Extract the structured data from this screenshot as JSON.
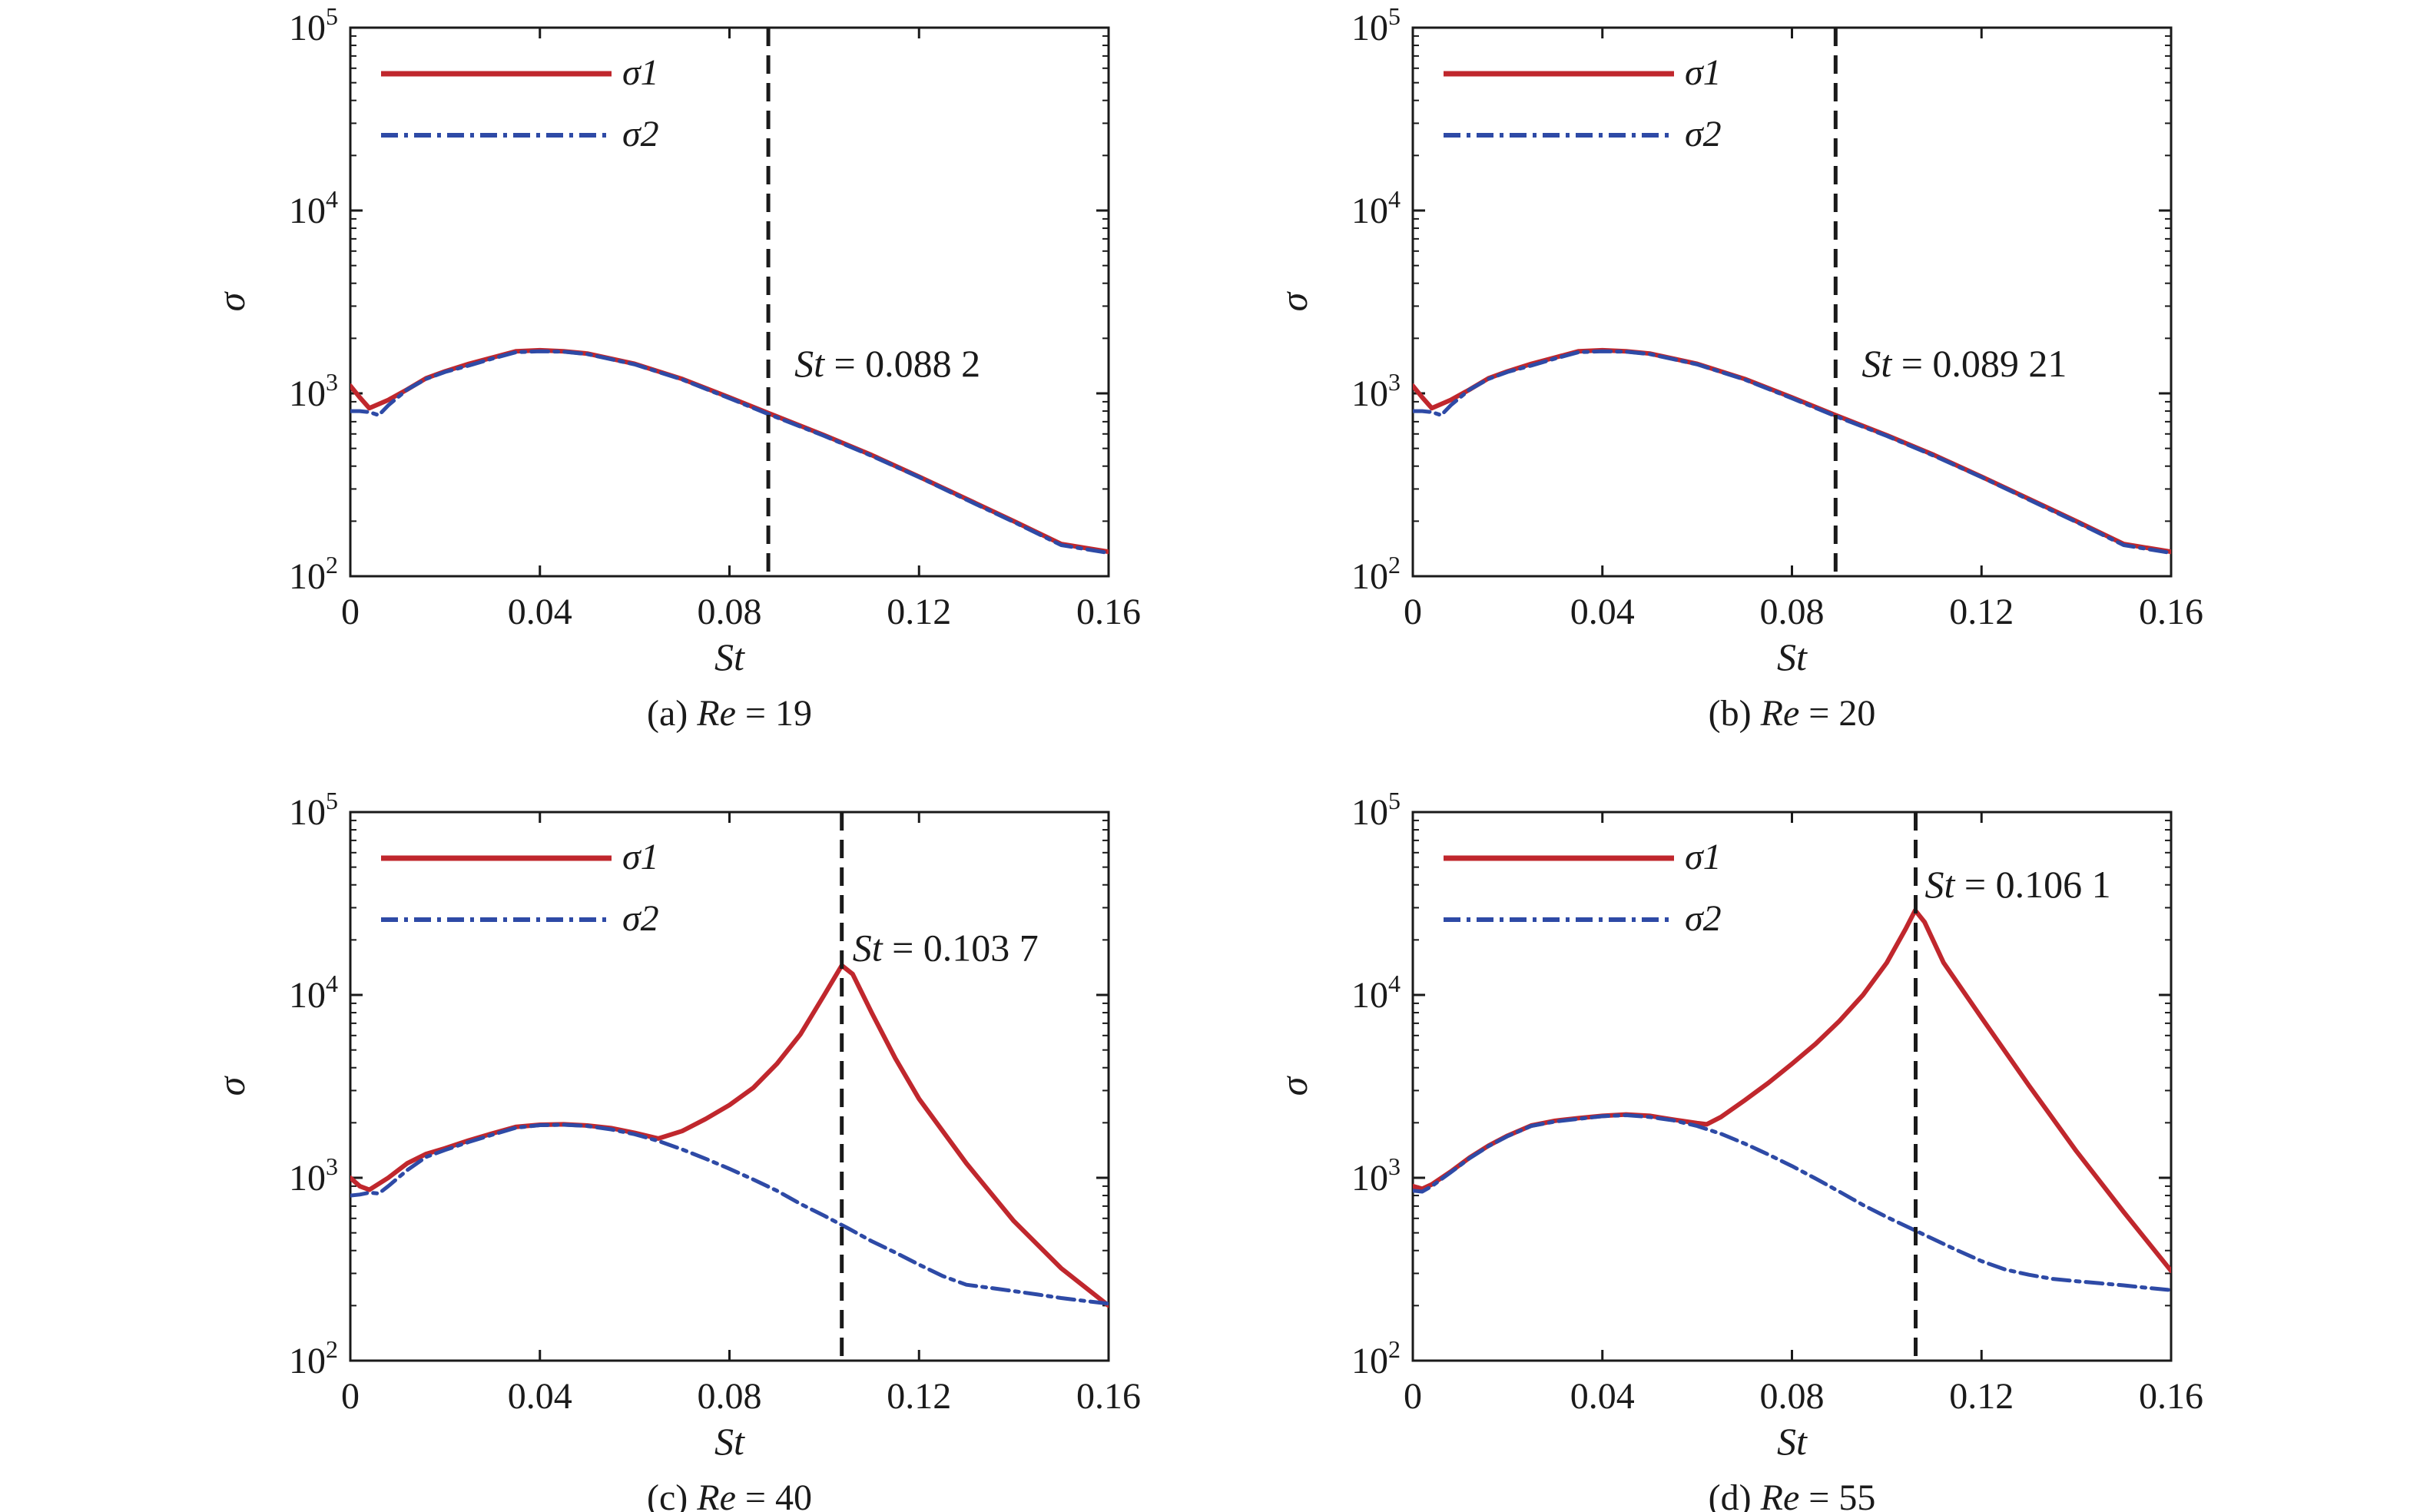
{
  "colors": {
    "sigma1": "#c0272d",
    "sigma2": "#2e4aa6",
    "axis": "#1a1a1a",
    "marker": "#1a1a1a"
  },
  "chart_data": [
    {
      "type": "line",
      "caption_prefix": "(a) ",
      "caption_param": "Re",
      "caption_value": " = 19",
      "xlabel": "St",
      "ylabel": "σ",
      "xlim": [
        0,
        0.16
      ],
      "ylim": [
        100,
        100000
      ],
      "y_scale": "log",
      "x_ticks": [
        "0",
        "0.04",
        "0.08",
        "0.12",
        "0.16"
      ],
      "y_tick_mantissa": "10",
      "y_tick_exponents": [
        "2",
        "3",
        "4",
        "5"
      ],
      "legend": [
        "σ1",
        "σ2"
      ],
      "legend_position": "top-left",
      "marker_x": 0.0882,
      "annotation_var": "St",
      "annotation_value": " = 0.088 2",
      "series": [
        {
          "name": "σ1",
          "style": "solid",
          "x": [
            0,
            0.002,
            0.004,
            0.008,
            0.012,
            0.016,
            0.02,
            0.025,
            0.03,
            0.035,
            0.04,
            0.045,
            0.05,
            0.06,
            0.07,
            0.08,
            0.0882,
            0.1,
            0.11,
            0.12,
            0.13,
            0.14,
            0.15,
            0.16
          ],
          "y": [
            1100,
            950,
            830,
            920,
            1050,
            1210,
            1320,
            1450,
            1570,
            1700,
            1720,
            1700,
            1650,
            1450,
            1200,
            950,
            780,
            590,
            460,
            350,
            265,
            200,
            150,
            136
          ]
        },
        {
          "name": "σ2",
          "style": "dashdot",
          "x": [
            0,
            0.002,
            0.004,
            0.006,
            0.008,
            0.012,
            0.016,
            0.02,
            0.025,
            0.03,
            0.035,
            0.04,
            0.045,
            0.05,
            0.06,
            0.07,
            0.08,
            0.0882,
            0.1,
            0.11,
            0.12,
            0.13,
            0.14,
            0.15,
            0.16
          ],
          "y": [
            800,
            800,
            790,
            760,
            860,
            1050,
            1200,
            1310,
            1420,
            1550,
            1680,
            1700,
            1690,
            1640,
            1440,
            1190,
            940,
            770,
            585,
            455,
            348,
            262,
            198,
            148,
            134
          ]
        }
      ]
    },
    {
      "type": "line",
      "caption_prefix": "(b) ",
      "caption_param": "Re",
      "caption_value": " = 20",
      "xlabel": "St",
      "ylabel": "σ",
      "xlim": [
        0,
        0.16
      ],
      "ylim": [
        100,
        100000
      ],
      "y_scale": "log",
      "x_ticks": [
        "0",
        "0.04",
        "0.08",
        "0.12",
        "0.16"
      ],
      "y_tick_mantissa": "10",
      "y_tick_exponents": [
        "2",
        "3",
        "4",
        "5"
      ],
      "legend": [
        "σ1",
        "σ2"
      ],
      "legend_position": "top-left",
      "marker_x": 0.08921,
      "annotation_var": "St",
      "annotation_value": " = 0.089 21",
      "series": [
        {
          "name": "σ1",
          "style": "solid",
          "x": [
            0,
            0.002,
            0.004,
            0.008,
            0.012,
            0.016,
            0.02,
            0.025,
            0.03,
            0.035,
            0.04,
            0.045,
            0.05,
            0.06,
            0.07,
            0.08,
            0.08921,
            0.1,
            0.11,
            0.12,
            0.13,
            0.14,
            0.15,
            0.16
          ],
          "y": [
            1100,
            950,
            830,
            920,
            1050,
            1210,
            1320,
            1450,
            1570,
            1700,
            1720,
            1700,
            1650,
            1450,
            1200,
            950,
            760,
            590,
            460,
            350,
            265,
            200,
            150,
            136
          ]
        },
        {
          "name": "σ2",
          "style": "dashdot",
          "x": [
            0,
            0.002,
            0.004,
            0.006,
            0.008,
            0.012,
            0.016,
            0.02,
            0.025,
            0.03,
            0.035,
            0.04,
            0.045,
            0.05,
            0.06,
            0.07,
            0.08,
            0.08921,
            0.1,
            0.11,
            0.12,
            0.13,
            0.14,
            0.15,
            0.16
          ],
          "y": [
            800,
            800,
            790,
            760,
            860,
            1050,
            1200,
            1310,
            1420,
            1550,
            1680,
            1700,
            1690,
            1640,
            1440,
            1190,
            940,
            750,
            585,
            455,
            348,
            262,
            198,
            148,
            134
          ]
        }
      ]
    },
    {
      "type": "line",
      "caption_prefix": "(c) ",
      "caption_param": "Re",
      "caption_value": " = 40",
      "xlabel": "St",
      "ylabel": "σ",
      "xlim": [
        0,
        0.16
      ],
      "ylim": [
        100,
        100000
      ],
      "y_scale": "log",
      "x_ticks": [
        "0",
        "0.04",
        "0.08",
        "0.12",
        "0.16"
      ],
      "y_tick_mantissa": "10",
      "y_tick_exponents": [
        "2",
        "3",
        "4",
        "5"
      ],
      "legend": [
        "σ1",
        "σ2"
      ],
      "legend_position": "top-left",
      "marker_x": 0.1037,
      "annotation_var": "St",
      "annotation_value": " = 0.103 7",
      "series": [
        {
          "name": "σ1",
          "style": "solid",
          "x": [
            0,
            0.002,
            0.004,
            0.008,
            0.012,
            0.016,
            0.02,
            0.025,
            0.03,
            0.035,
            0.04,
            0.045,
            0.05,
            0.055,
            0.06,
            0.065,
            0.07,
            0.075,
            0.08,
            0.085,
            0.09,
            0.095,
            0.1,
            0.1037,
            0.106,
            0.11,
            0.115,
            0.12,
            0.13,
            0.14,
            0.15,
            0.16
          ],
          "y": [
            1000,
            900,
            860,
            1000,
            1200,
            1350,
            1450,
            1600,
            1750,
            1900,
            1950,
            1960,
            1930,
            1870,
            1760,
            1640,
            1800,
            2100,
            2500,
            3100,
            4200,
            6100,
            10000,
            14500,
            13000,
            8000,
            4500,
            2700,
            1200,
            580,
            320,
            200
          ]
        },
        {
          "name": "σ2",
          "style": "dashdot",
          "x": [
            0,
            0.002,
            0.004,
            0.006,
            0.008,
            0.012,
            0.016,
            0.02,
            0.025,
            0.03,
            0.035,
            0.04,
            0.045,
            0.05,
            0.055,
            0.06,
            0.065,
            0.07,
            0.075,
            0.08,
            0.085,
            0.09,
            0.095,
            0.1,
            0.105,
            0.11,
            0.115,
            0.12,
            0.125,
            0.13,
            0.135,
            0.14,
            0.145,
            0.15,
            0.155,
            0.16
          ],
          "y": [
            800,
            810,
            830,
            820,
            900,
            1100,
            1300,
            1420,
            1570,
            1720,
            1880,
            1940,
            1950,
            1920,
            1840,
            1730,
            1590,
            1430,
            1270,
            1120,
            980,
            850,
            720,
            620,
            530,
            450,
            390,
            335,
            290,
            260,
            250,
            240,
            230,
            220,
            212,
            205
          ]
        }
      ]
    },
    {
      "type": "line",
      "caption_prefix": "(d) ",
      "caption_param": "Re",
      "caption_value": " = 55",
      "xlabel": "St",
      "ylabel": "σ",
      "xlim": [
        0,
        0.16
      ],
      "ylim": [
        100,
        100000
      ],
      "y_scale": "log",
      "x_ticks": [
        "0",
        "0.04",
        "0.08",
        "0.12",
        "0.16"
      ],
      "y_tick_mantissa": "10",
      "y_tick_exponents": [
        "2",
        "3",
        "4",
        "5"
      ],
      "legend": [
        "σ1",
        "σ2"
      ],
      "legend_position": "top-left",
      "marker_x": 0.1061,
      "annotation_var": "St",
      "annotation_value": " = 0.106 1",
      "series": [
        {
          "name": "σ1",
          "style": "solid",
          "x": [
            0,
            0.002,
            0.004,
            0.008,
            0.012,
            0.016,
            0.02,
            0.025,
            0.03,
            0.035,
            0.04,
            0.045,
            0.05,
            0.055,
            0.06,
            0.062,
            0.065,
            0.07,
            0.075,
            0.08,
            0.085,
            0.09,
            0.095,
            0.1,
            0.104,
            0.106,
            0.108,
            0.112,
            0.12,
            0.13,
            0.14,
            0.15,
            0.16
          ],
          "y": [
            900,
            870,
            920,
            1080,
            1290,
            1500,
            1700,
            1930,
            2050,
            2120,
            2180,
            2220,
            2180,
            2080,
            1990,
            1960,
            2150,
            2650,
            3300,
            4200,
            5400,
            7200,
            10000,
            15000,
            23000,
            29000,
            25000,
            15000,
            7500,
            3200,
            1400,
            650,
            310
          ]
        },
        {
          "name": "σ2",
          "style": "dashdot",
          "x": [
            0,
            0.002,
            0.004,
            0.008,
            0.012,
            0.016,
            0.02,
            0.025,
            0.03,
            0.035,
            0.04,
            0.045,
            0.05,
            0.055,
            0.06,
            0.065,
            0.07,
            0.075,
            0.08,
            0.085,
            0.09,
            0.095,
            0.1,
            0.105,
            0.11,
            0.115,
            0.12,
            0.125,
            0.13,
            0.135,
            0.14,
            0.145,
            0.15,
            0.155,
            0.16
          ],
          "y": [
            850,
            840,
            900,
            1070,
            1280,
            1490,
            1690,
            1920,
            2030,
            2100,
            2170,
            2200,
            2150,
            2060,
            1920,
            1740,
            1540,
            1340,
            1160,
            990,
            840,
            710,
            610,
            530,
            460,
            400,
            350,
            315,
            295,
            280,
            272,
            265,
            258,
            250,
            243
          ]
        }
      ]
    }
  ]
}
